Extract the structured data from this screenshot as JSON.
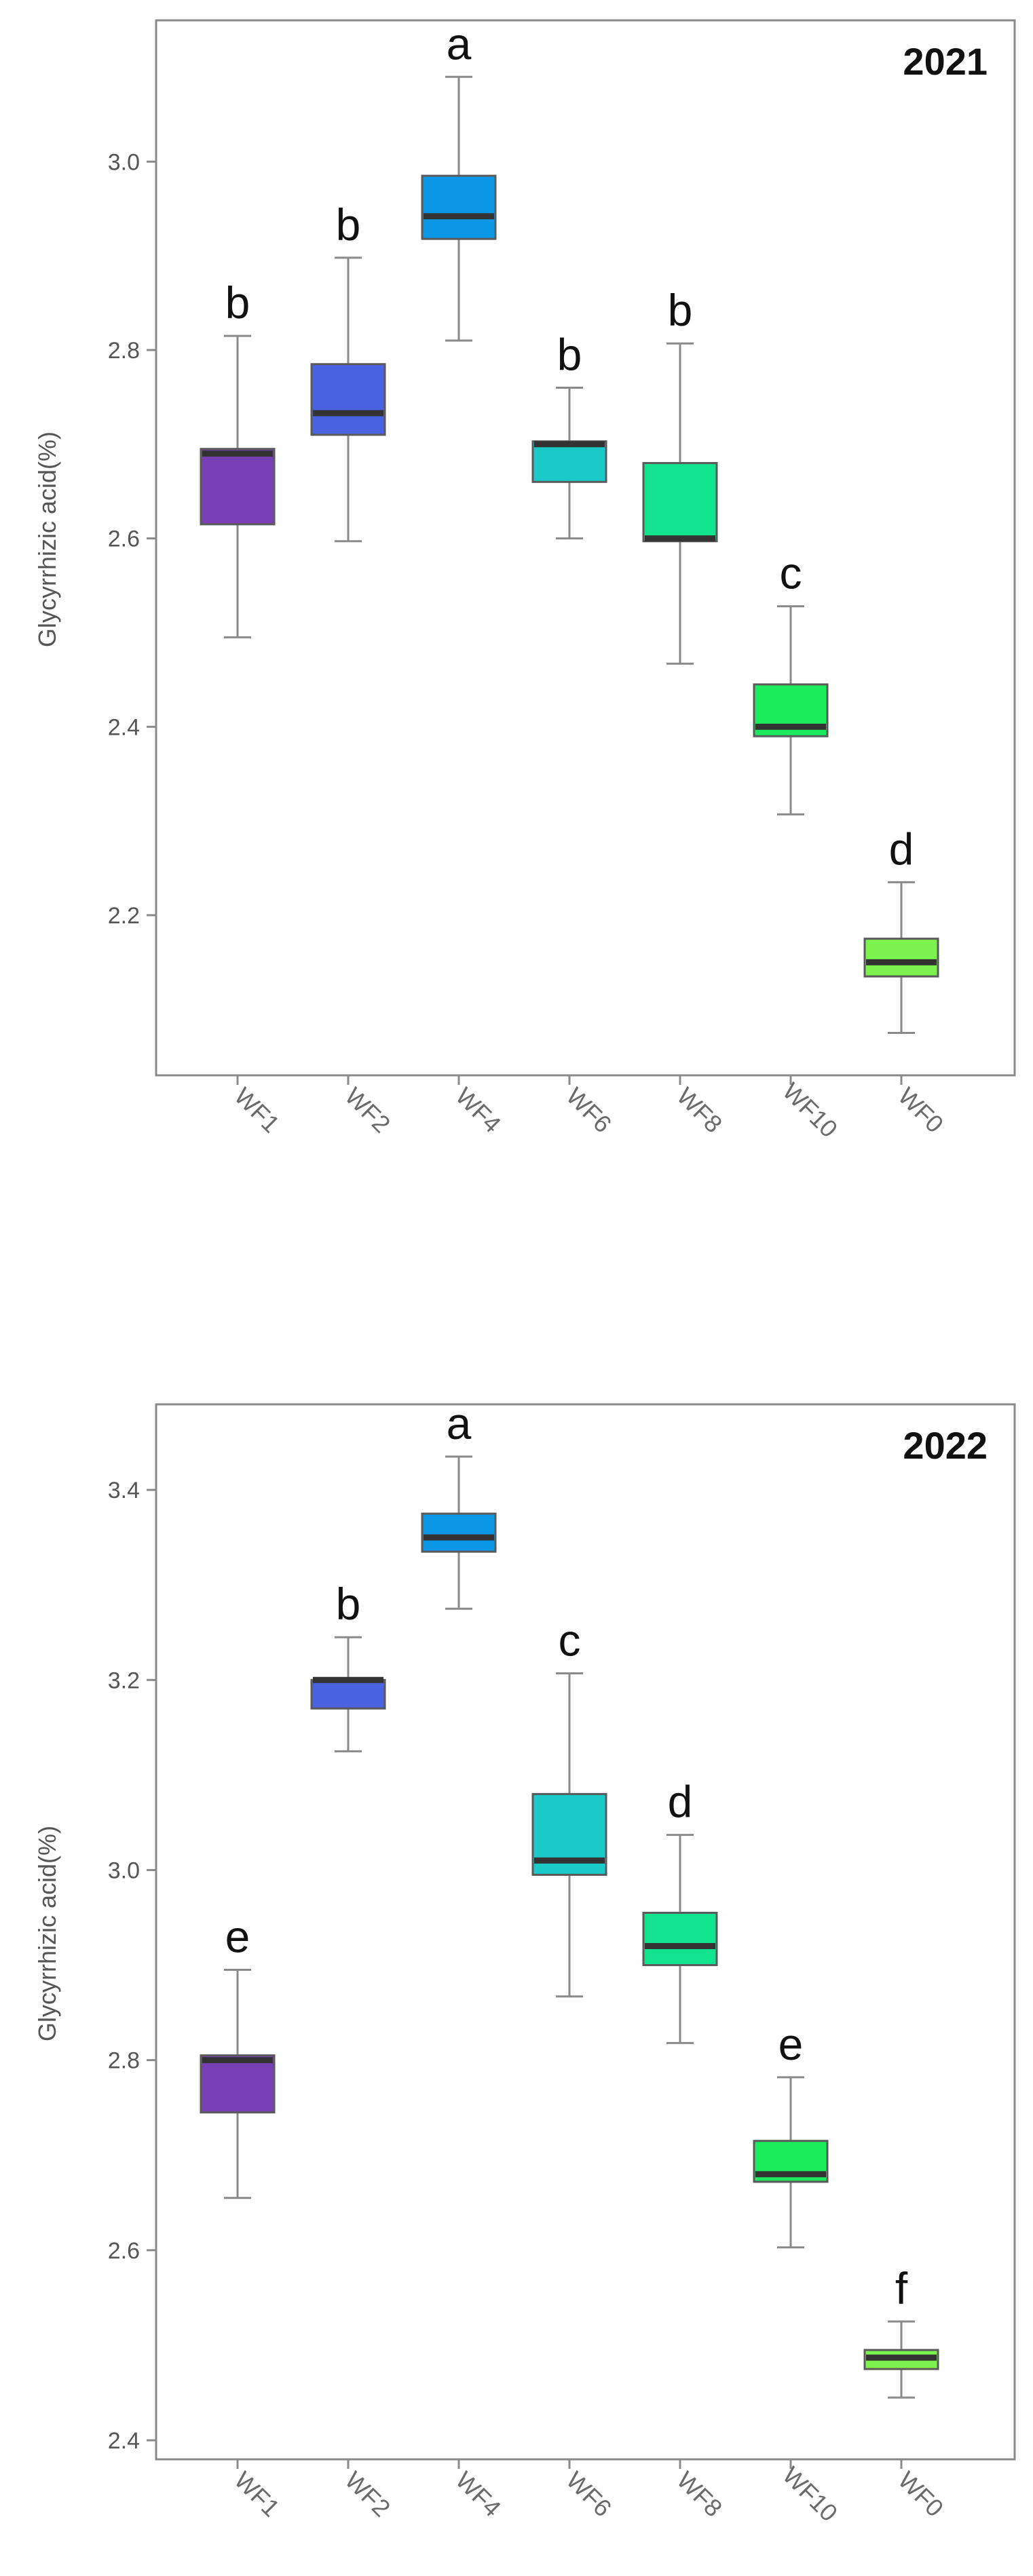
{
  "chart_data": [
    {
      "type": "box",
      "title": "2021",
      "ylabel": "Glycyrrhizic acid(%)",
      "xlabel": "",
      "ylim": [
        2.03,
        3.15
      ],
      "yticks": [
        "2.2",
        "2.4",
        "2.6",
        "2.8",
        "3.0"
      ],
      "grid": false,
      "categories": [
        "WF1",
        "WF2",
        "WF4",
        "WF6",
        "WF8",
        "WF10",
        "WF0"
      ],
      "colors": [
        "#7B3FB5",
        "#4A63E0",
        "#0A97E6",
        "#1CC9C9",
        "#12E38F",
        "#1DEB5E",
        "#7CF24F"
      ],
      "boxes": [
        {
          "min": 2.495,
          "q1": 2.615,
          "median": 2.69,
          "q3": 2.695,
          "max": 2.815
        },
        {
          "min": 2.597,
          "q1": 2.71,
          "median": 2.733,
          "q3": 2.785,
          "max": 2.898
        },
        {
          "min": 2.81,
          "q1": 2.918,
          "median": 2.942,
          "q3": 2.985,
          "max": 3.09
        },
        {
          "min": 2.6,
          "q1": 2.66,
          "median": 2.7,
          "q3": 2.703,
          "max": 2.76
        },
        {
          "min": 2.467,
          "q1": 2.597,
          "median": 2.6,
          "q3": 2.68,
          "max": 2.807
        },
        {
          "min": 2.307,
          "q1": 2.39,
          "median": 2.4,
          "q3": 2.445,
          "max": 2.528
        },
        {
          "min": 2.075,
          "q1": 2.135,
          "median": 2.15,
          "q3": 2.175,
          "max": 2.235
        }
      ],
      "significance": [
        "b",
        "b",
        "a",
        "b",
        "b",
        "c",
        "d"
      ]
    },
    {
      "type": "box",
      "title": "2022",
      "ylabel": "Glycyrrhizic acid(%)",
      "xlabel": "",
      "ylim": [
        2.38,
        3.49
      ],
      "yticks": [
        "2.4",
        "2.6",
        "2.8",
        "3.0",
        "3.2",
        "3.4"
      ],
      "grid": false,
      "categories": [
        "WF1",
        "WF2",
        "WF4",
        "WF6",
        "WF8",
        "WF10",
        "WF0"
      ],
      "colors": [
        "#7B3FB5",
        "#4A63E0",
        "#0A97E6",
        "#1CC9C9",
        "#12E38F",
        "#1DEB5E",
        "#7CF24F"
      ],
      "boxes": [
        {
          "min": 2.655,
          "q1": 2.745,
          "median": 2.8,
          "q3": 2.805,
          "max": 2.895
        },
        {
          "min": 3.125,
          "q1": 3.17,
          "median": 3.2,
          "q3": 3.2,
          "max": 3.245
        },
        {
          "min": 3.275,
          "q1": 3.335,
          "median": 3.35,
          "q3": 3.375,
          "max": 3.435
        },
        {
          "min": 2.867,
          "q1": 2.995,
          "median": 3.01,
          "q3": 3.08,
          "max": 3.207
        },
        {
          "min": 2.818,
          "q1": 2.9,
          "median": 2.92,
          "q3": 2.955,
          "max": 3.037
        },
        {
          "min": 2.603,
          "q1": 2.672,
          "median": 2.68,
          "q3": 2.715,
          "max": 2.782
        },
        {
          "min": 2.445,
          "q1": 2.475,
          "median": 2.487,
          "q3": 2.495,
          "max": 2.525
        }
      ],
      "significance": [
        "e",
        "b",
        "a",
        "c",
        "d",
        "e",
        "f"
      ]
    }
  ]
}
